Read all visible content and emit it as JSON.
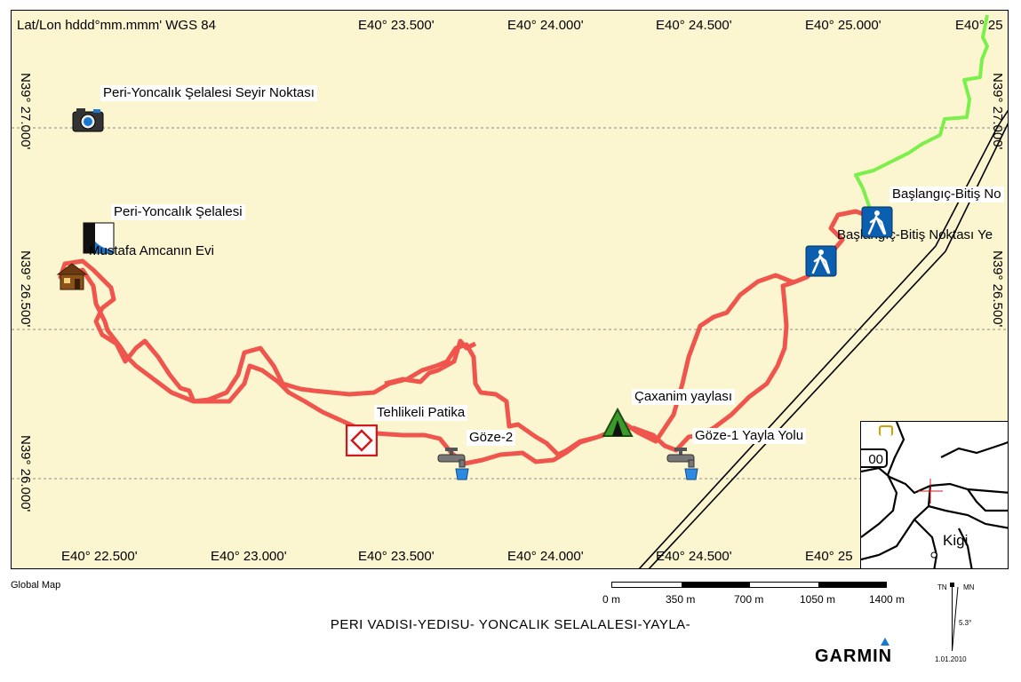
{
  "map": {
    "datum_label": "Lat/Lon hddd°mm.mmm' WGS 84",
    "top_longitudes": [
      "E40° 23.500'",
      "E40° 24.000'",
      "E40° 24.500'",
      "E40° 25.000'",
      "E40° 25"
    ],
    "bottom_longitudes": [
      "E40° 22.500'",
      "E40° 23.000'",
      "E40° 23.500'",
      "E40° 24.000'",
      "E40° 24.500'",
      "E40° 25"
    ],
    "left_latitudes": [
      "N39° 27.000'",
      "N39° 26.500'",
      "N39° 26.000'"
    ],
    "right_latitudes": [
      "N39° 27.000'",
      "N39° 26.500'"
    ],
    "waypoints": [
      {
        "label": "Peri-Yoncalık Şelalesi Seyir Noktası",
        "icon": "camera-icon"
      },
      {
        "label": "Peri-Yoncalık Şelalesi",
        "icon": "waterfall-icon"
      },
      {
        "label": "Mustafa Amcanın Evi",
        "icon": "house-icon"
      },
      {
        "label": "Tehlikeli Patika",
        "icon": "danger-diamond-icon"
      },
      {
        "label": "Göze-2",
        "icon": "water-tap-icon"
      },
      {
        "label": "Çaxanim yaylası",
        "icon": "tent-icon"
      },
      {
        "label": "Göze-1 Yayla Yolu",
        "icon": "water-tap-icon"
      },
      {
        "label": "Başlangıç-Bitiş Noktası Ye",
        "icon": "hiker-icon"
      },
      {
        "label": "Başlangıç-Bitiş No",
        "icon": "hiker-icon"
      }
    ],
    "inset": {
      "place": "Kigi",
      "road_shield": "00"
    },
    "colors": {
      "background": "#fbf6cf",
      "track_red": "#f0554d",
      "track_green": "#7af04a",
      "road": "#000000"
    }
  },
  "footer": {
    "map_source": "Global Map",
    "scale_labels": [
      "0 m",
      "350 m",
      "700 m",
      "1050 m",
      "1400 m"
    ],
    "title": "PERI VADISI-YEDISU- YONCALIK SELALALESI-YAYLA-",
    "brand": "GARMIN",
    "north_tn": "TN",
    "north_mn": "MN",
    "declination": "5.3°",
    "date": "1.01.2010"
  }
}
